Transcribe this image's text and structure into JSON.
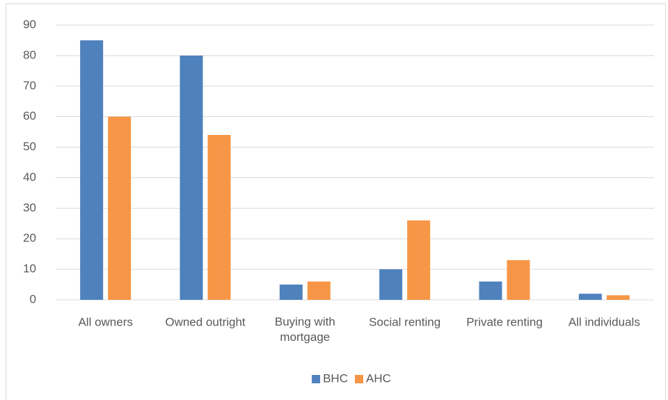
{
  "chart_data": {
    "type": "bar",
    "categories": [
      "All owners",
      "Owned outright",
      "Buying with mortgage",
      "Social renting",
      "Private renting",
      "All individuals"
    ],
    "series": [
      {
        "name": "BHC",
        "color": "#4f81bd",
        "values": [
          85,
          80,
          5,
          10,
          6,
          2
        ]
      },
      {
        "name": "AHC",
        "color": "#f79646",
        "values": [
          60,
          54,
          6,
          26,
          13,
          1.5
        ]
      }
    ],
    "ylim": [
      0,
      90
    ],
    "yticks": [
      0,
      10,
      20,
      30,
      40,
      50,
      60,
      70,
      80,
      90
    ],
    "grid": true,
    "legend": "bottom"
  }
}
